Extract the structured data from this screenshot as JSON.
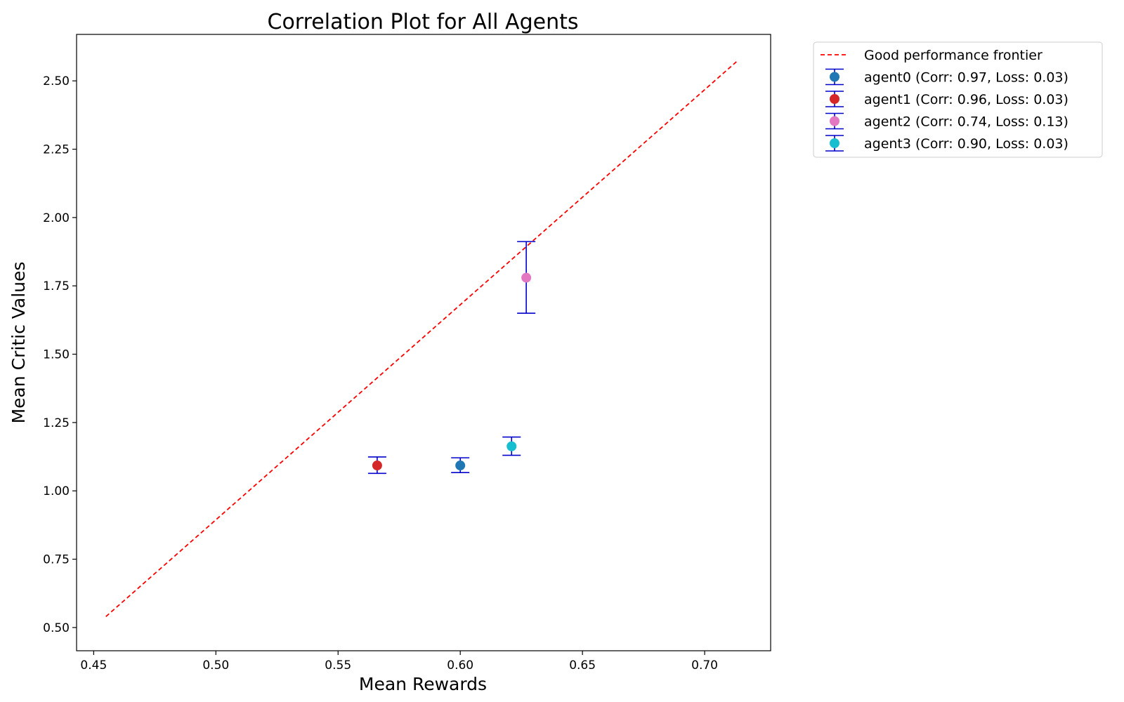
{
  "chart_data": {
    "type": "scatter",
    "title": "Correlation Plot for All Agents",
    "xlabel": "Mean Rewards",
    "ylabel": "Mean Critic Values",
    "xlim": [
      0.443,
      0.727
    ],
    "ylim": [
      0.415,
      2.67
    ],
    "xticks": [
      0.45,
      0.5,
      0.55,
      0.6,
      0.65,
      0.7
    ],
    "xtick_labels": [
      "0.45",
      "0.50",
      "0.55",
      "0.60",
      "0.65",
      "0.70"
    ],
    "yticks": [
      0.5,
      0.75,
      1.0,
      1.25,
      1.5,
      1.75,
      2.0,
      2.25,
      2.5
    ],
    "ytick_labels": [
      "0.50",
      "0.75",
      "1.00",
      "1.25",
      "1.50",
      "1.75",
      "2.00",
      "2.25",
      "2.50"
    ],
    "grid": false,
    "legend_position": "outside-right-top",
    "frontier": {
      "name": "Good performance frontier",
      "color": "#ff0000",
      "style": "dashed",
      "x": [
        0.455,
        0.713
      ],
      "y": [
        0.54,
        2.57
      ]
    },
    "errorbar_color": "#0000cc",
    "series": [
      {
        "name": "agent0 (Corr: 0.97, Loss: 0.03)",
        "x": 0.6,
        "y": 1.093,
        "err_low": 1.067,
        "err_high": 1.121,
        "color": "#1f77b4"
      },
      {
        "name": "agent1 (Corr: 0.96, Loss: 0.03)",
        "x": 0.566,
        "y": 1.093,
        "err_low": 1.064,
        "err_high": 1.124,
        "color": "#d62728"
      },
      {
        "name": "agent2 (Corr: 0.74, Loss: 0.13)",
        "x": 0.627,
        "y": 1.78,
        "err_low": 1.65,
        "err_high": 1.912,
        "color": "#e377c2"
      },
      {
        "name": "agent3 (Corr: 0.90, Loss: 0.03)",
        "x": 0.621,
        "y": 1.163,
        "err_low": 1.13,
        "err_high": 1.197,
        "color": "#17becf"
      }
    ]
  }
}
